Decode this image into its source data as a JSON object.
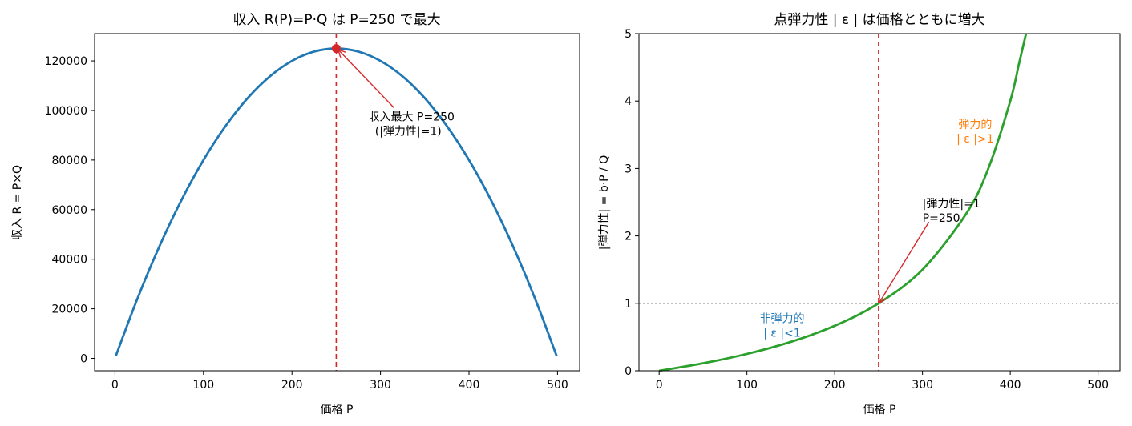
{
  "chart_data": [
    {
      "type": "line",
      "title": "収入 R(P)=P·Q は P=250 で最大",
      "xlabel": "価格 P",
      "ylabel": "収入 R = P×Q",
      "xlim": [
        -23,
        525
      ],
      "ylim": [
        -5000,
        131000
      ],
      "xticks": [
        0,
        100,
        200,
        300,
        400,
        500
      ],
      "yticks": [
        0,
        20000,
        40000,
        60000,
        80000,
        100000,
        120000
      ],
      "series": [
        {
          "color": "#1f77b4",
          "x": [
            1,
            25,
            50,
            75,
            100,
            125,
            150,
            175,
            200,
            225,
            250,
            275,
            300,
            325,
            350,
            375,
            400,
            425,
            450,
            475,
            499
          ],
          "y": [
            998,
            23750,
            45000,
            63750,
            80000,
            93750,
            105000,
            113750,
            120000,
            123750,
            125000,
            123750,
            120000,
            113750,
            105000,
            93750,
            80000,
            63750,
            45000,
            23750,
            998
          ]
        }
      ],
      "vline": {
        "x": 250,
        "color": "#d62728",
        "style": "dashed"
      },
      "marker": {
        "x": 250,
        "y": 125000,
        "color": "#d62728"
      },
      "annotation": {
        "lines": [
          "収入最大 P=250",
          "(|弾力性|=1)"
        ],
        "text_at": [
          335,
          96000
        ],
        "arrow_to": [
          250,
          125000
        ],
        "color": "#d62728"
      }
    },
    {
      "type": "line",
      "title": "点弾力性 | ε | は価格とともに増大",
      "xlabel": "価格 P",
      "ylabel": "|弾力性| = b·P / Q",
      "xlim": [
        -23,
        525
      ],
      "ylim": [
        0,
        5
      ],
      "xticks": [
        0,
        100,
        200,
        300,
        400,
        500
      ],
      "yticks": [
        0,
        1,
        2,
        3,
        4,
        5
      ],
      "series": [
        {
          "color": "#2ca02c",
          "x": [
            0,
            50,
            100,
            150,
            200,
            250,
            300,
            350,
            375,
            400,
            410,
            418
          ],
          "y": [
            0,
            0.111,
            0.25,
            0.429,
            0.667,
            1.0,
            1.5,
            2.333,
            3.0,
            4.0,
            4.556,
            5.0
          ]
        }
      ],
      "vline": {
        "x": 250,
        "color": "#d62728",
        "style": "dashed"
      },
      "hline": {
        "y": 1,
        "color": "#808080",
        "style": "dotted"
      },
      "annotation": {
        "lines": [
          "|弾力性|=1",
          "P=250"
        ],
        "text_at": [
          300,
          2.42
        ],
        "arrow_to": [
          250,
          1.0
        ],
        "color": "#d62728"
      },
      "region_labels": [
        {
          "lines": [
            "弾力的",
            "| ε |>1"
          ],
          "at": [
            360,
            3.6
          ],
          "color": "#ff7f0e"
        },
        {
          "lines": [
            "非弾力的",
            "| ε |<1"
          ],
          "at": [
            140,
            0.72
          ],
          "color": "#1f77b4"
        }
      ]
    }
  ]
}
